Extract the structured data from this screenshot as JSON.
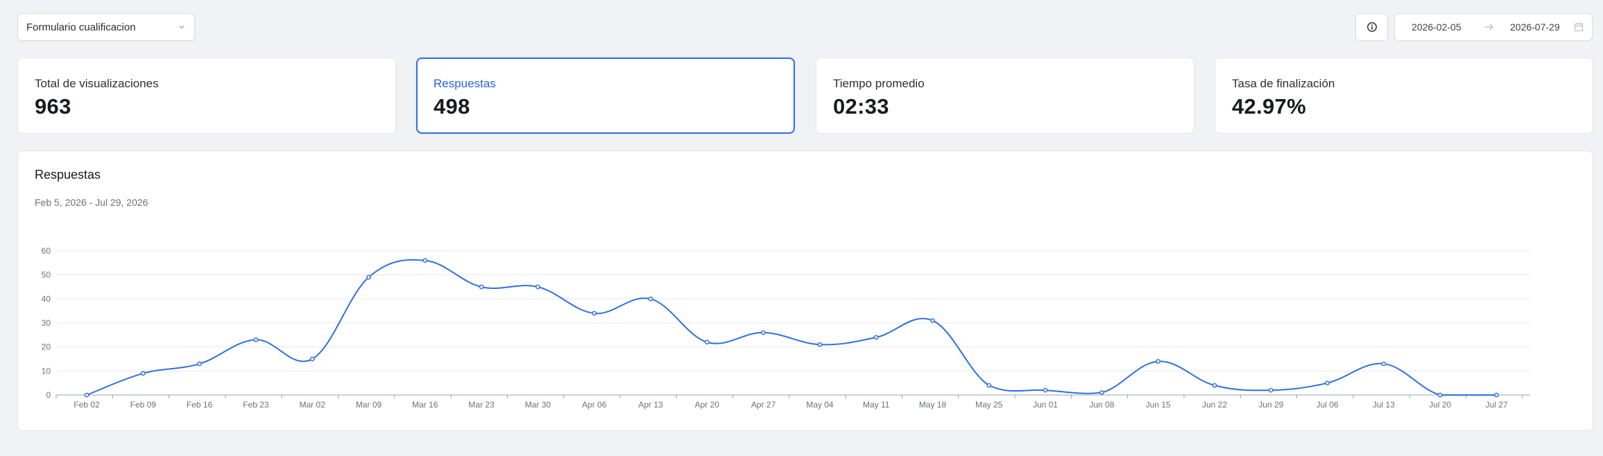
{
  "form_selector": {
    "value": "Formulario cualificacion"
  },
  "date_range": {
    "start": "2026-02-05",
    "end": "2026-07-29"
  },
  "kpis": [
    {
      "label": "Total de visualizaciones",
      "value": "963"
    },
    {
      "label": "Respuestas",
      "value": "498",
      "active": true
    },
    {
      "label": "Tiempo promedio",
      "value": "02:33"
    },
    {
      "label": "Tasa de finalización",
      "value": "42.97%"
    }
  ],
  "chart": {
    "title": "Respuestas",
    "subtitle": "Feb 5, 2026 - Jul 29, 2026"
  },
  "colors": {
    "accent": "#2563eb",
    "line": "#2f6fe0"
  },
  "chart_data": {
    "type": "line",
    "categories": [
      "Feb 02",
      "Feb 09",
      "Feb 16",
      "Feb 23",
      "Mar 02",
      "Mar 09",
      "Mar 16",
      "Mar 23",
      "Mar 30",
      "Apr 06",
      "Apr 13",
      "Apr 20",
      "Apr 27",
      "May 04",
      "May 11",
      "May 18",
      "May 25",
      "Jun 01",
      "Jun 08",
      "Jun 15",
      "Jun 22",
      "Jun 29",
      "Jul 06",
      "Jul 13",
      "Jul 20",
      "Jul 27"
    ],
    "series": [
      {
        "values": [
          0,
          9,
          13,
          23,
          15,
          49,
          56,
          45,
          45,
          34,
          40,
          22,
          26,
          21,
          24,
          31,
          4,
          2,
          1,
          14,
          4,
          2,
          5,
          13,
          0,
          0
        ]
      }
    ],
    "yticks": [
      0,
      10,
      20,
      30,
      40,
      50,
      60
    ],
    "ylim": [
      0,
      60
    ],
    "grid": true,
    "curve": "smooth"
  }
}
